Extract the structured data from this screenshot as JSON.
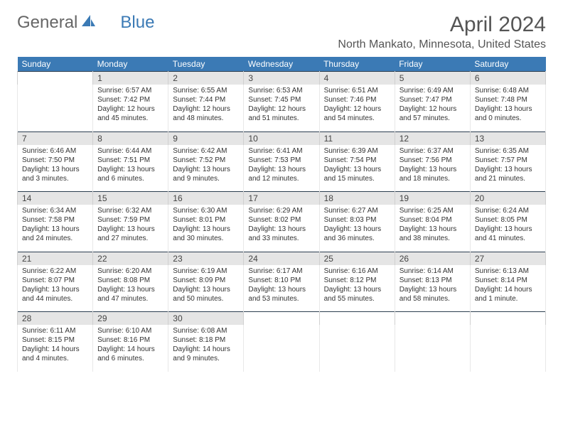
{
  "logo": {
    "text1": "General",
    "text2": "Blue"
  },
  "title": "April 2024",
  "location": "North Mankato, Minnesota, United States",
  "colors": {
    "header_bg": "#3b7ab5",
    "daynum_bg": "#e5e5e5",
    "week_divider": "#2c3e50",
    "text": "#333333",
    "title_text": "#555555"
  },
  "day_names": [
    "Sunday",
    "Monday",
    "Tuesday",
    "Wednesday",
    "Thursday",
    "Friday",
    "Saturday"
  ],
  "weeks": [
    [
      null,
      {
        "n": "1",
        "sunrise": "6:57 AM",
        "sunset": "7:42 PM",
        "daylight": "12 hours and 45 minutes."
      },
      {
        "n": "2",
        "sunrise": "6:55 AM",
        "sunset": "7:44 PM",
        "daylight": "12 hours and 48 minutes."
      },
      {
        "n": "3",
        "sunrise": "6:53 AM",
        "sunset": "7:45 PM",
        "daylight": "12 hours and 51 minutes."
      },
      {
        "n": "4",
        "sunrise": "6:51 AM",
        "sunset": "7:46 PM",
        "daylight": "12 hours and 54 minutes."
      },
      {
        "n": "5",
        "sunrise": "6:49 AM",
        "sunset": "7:47 PM",
        "daylight": "12 hours and 57 minutes."
      },
      {
        "n": "6",
        "sunrise": "6:48 AM",
        "sunset": "7:48 PM",
        "daylight": "13 hours and 0 minutes."
      }
    ],
    [
      {
        "n": "7",
        "sunrise": "6:46 AM",
        "sunset": "7:50 PM",
        "daylight": "13 hours and 3 minutes."
      },
      {
        "n": "8",
        "sunrise": "6:44 AM",
        "sunset": "7:51 PM",
        "daylight": "13 hours and 6 minutes."
      },
      {
        "n": "9",
        "sunrise": "6:42 AM",
        "sunset": "7:52 PM",
        "daylight": "13 hours and 9 minutes."
      },
      {
        "n": "10",
        "sunrise": "6:41 AM",
        "sunset": "7:53 PM",
        "daylight": "13 hours and 12 minutes."
      },
      {
        "n": "11",
        "sunrise": "6:39 AM",
        "sunset": "7:54 PM",
        "daylight": "13 hours and 15 minutes."
      },
      {
        "n": "12",
        "sunrise": "6:37 AM",
        "sunset": "7:56 PM",
        "daylight": "13 hours and 18 minutes."
      },
      {
        "n": "13",
        "sunrise": "6:35 AM",
        "sunset": "7:57 PM",
        "daylight": "13 hours and 21 minutes."
      }
    ],
    [
      {
        "n": "14",
        "sunrise": "6:34 AM",
        "sunset": "7:58 PM",
        "daylight": "13 hours and 24 minutes."
      },
      {
        "n": "15",
        "sunrise": "6:32 AM",
        "sunset": "7:59 PM",
        "daylight": "13 hours and 27 minutes."
      },
      {
        "n": "16",
        "sunrise": "6:30 AM",
        "sunset": "8:01 PM",
        "daylight": "13 hours and 30 minutes."
      },
      {
        "n": "17",
        "sunrise": "6:29 AM",
        "sunset": "8:02 PM",
        "daylight": "13 hours and 33 minutes."
      },
      {
        "n": "18",
        "sunrise": "6:27 AM",
        "sunset": "8:03 PM",
        "daylight": "13 hours and 36 minutes."
      },
      {
        "n": "19",
        "sunrise": "6:25 AM",
        "sunset": "8:04 PM",
        "daylight": "13 hours and 38 minutes."
      },
      {
        "n": "20",
        "sunrise": "6:24 AM",
        "sunset": "8:05 PM",
        "daylight": "13 hours and 41 minutes."
      }
    ],
    [
      {
        "n": "21",
        "sunrise": "6:22 AM",
        "sunset": "8:07 PM",
        "daylight": "13 hours and 44 minutes."
      },
      {
        "n": "22",
        "sunrise": "6:20 AM",
        "sunset": "8:08 PM",
        "daylight": "13 hours and 47 minutes."
      },
      {
        "n": "23",
        "sunrise": "6:19 AM",
        "sunset": "8:09 PM",
        "daylight": "13 hours and 50 minutes."
      },
      {
        "n": "24",
        "sunrise": "6:17 AM",
        "sunset": "8:10 PM",
        "daylight": "13 hours and 53 minutes."
      },
      {
        "n": "25",
        "sunrise": "6:16 AM",
        "sunset": "8:12 PM",
        "daylight": "13 hours and 55 minutes."
      },
      {
        "n": "26",
        "sunrise": "6:14 AM",
        "sunset": "8:13 PM",
        "daylight": "13 hours and 58 minutes."
      },
      {
        "n": "27",
        "sunrise": "6:13 AM",
        "sunset": "8:14 PM",
        "daylight": "14 hours and 1 minute."
      }
    ],
    [
      {
        "n": "28",
        "sunrise": "6:11 AM",
        "sunset": "8:15 PM",
        "daylight": "14 hours and 4 minutes."
      },
      {
        "n": "29",
        "sunrise": "6:10 AM",
        "sunset": "8:16 PM",
        "daylight": "14 hours and 6 minutes."
      },
      {
        "n": "30",
        "sunrise": "6:08 AM",
        "sunset": "8:18 PM",
        "daylight": "14 hours and 9 minutes."
      },
      null,
      null,
      null,
      null
    ]
  ]
}
